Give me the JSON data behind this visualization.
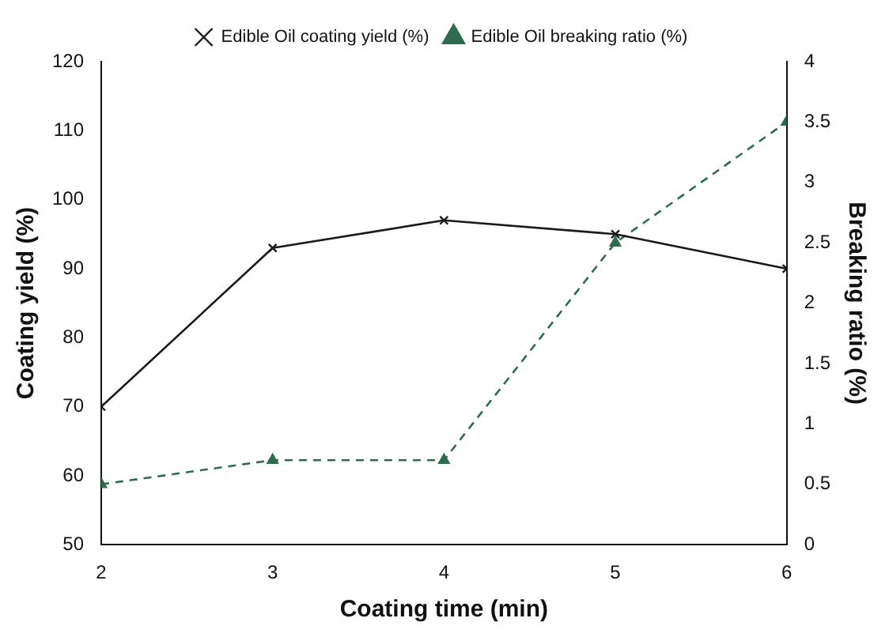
{
  "chart_data": {
    "type": "line",
    "xlabel": "Coating time (min)",
    "ylabel": "Coating yield (%)",
    "y2label": "Breaking ratio (%)",
    "x": [
      2,
      3,
      4,
      5,
      6
    ],
    "xlim": [
      2,
      6
    ],
    "xticks": [
      2,
      3,
      4,
      5,
      6
    ],
    "ylim": [
      50,
      120
    ],
    "yticks": [
      50,
      60,
      70,
      80,
      90,
      100,
      110,
      120
    ],
    "y2lim": [
      0,
      4
    ],
    "y2ticks": [
      0,
      0.5,
      1,
      1.5,
      2,
      2.5,
      3,
      3.5,
      4
    ],
    "grid": false,
    "legend": "top",
    "series": [
      {
        "name": "Edible Oil coating yield (%)",
        "color": "#1a1a1a",
        "values": [
          70,
          93,
          97,
          95,
          90
        ],
        "marker": "cross",
        "line_style": "solid"
      },
      {
        "name": "Edible Oil breaking ratio (%)",
        "color": "#2f6b4f",
        "values": [
          0.5,
          0.7,
          0.7,
          2.5,
          3.5
        ],
        "axis": "y2",
        "marker": "triangle",
        "line_style": "dashed"
      }
    ]
  }
}
